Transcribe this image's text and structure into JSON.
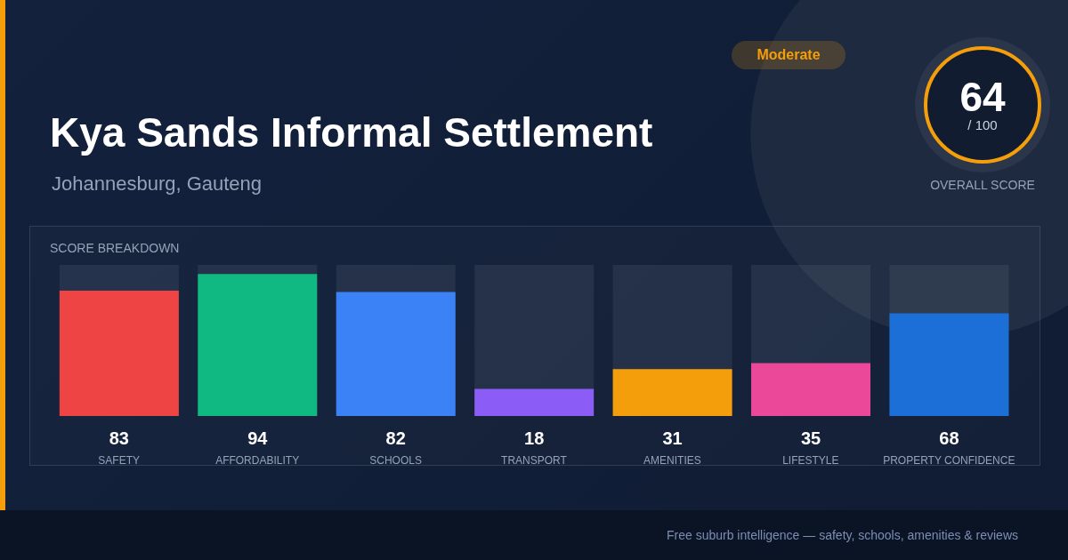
{
  "chart_data": {
    "type": "bar",
    "title": "Kya Sands Informal Settlement",
    "subtitle": "Johannesburg, Gauteng",
    "annotations": [
      "Moderate",
      "64",
      "/ 100",
      "OVERALL SCORE",
      "SCORE BREAKDOWN",
      "Free suburb intelligence — safety, schools, amenities & reviews"
    ],
    "categories": [
      "SAFETY",
      "AFFORDABILITY",
      "SCHOOLS",
      "TRANSPORT",
      "AMENITIES",
      "LIFESTYLE",
      "PROPERTY CONFIDENCE"
    ],
    "values": [
      83,
      94,
      82,
      18,
      31,
      35,
      68
    ],
    "colors": [
      "#ef4444",
      "#10b981",
      "#3b82f6",
      "#8b5cf6",
      "#f59e0b",
      "#ec4899",
      "#1d6fd8"
    ],
    "ylim": [
      0,
      100
    ],
    "data_labels": true
  }
}
